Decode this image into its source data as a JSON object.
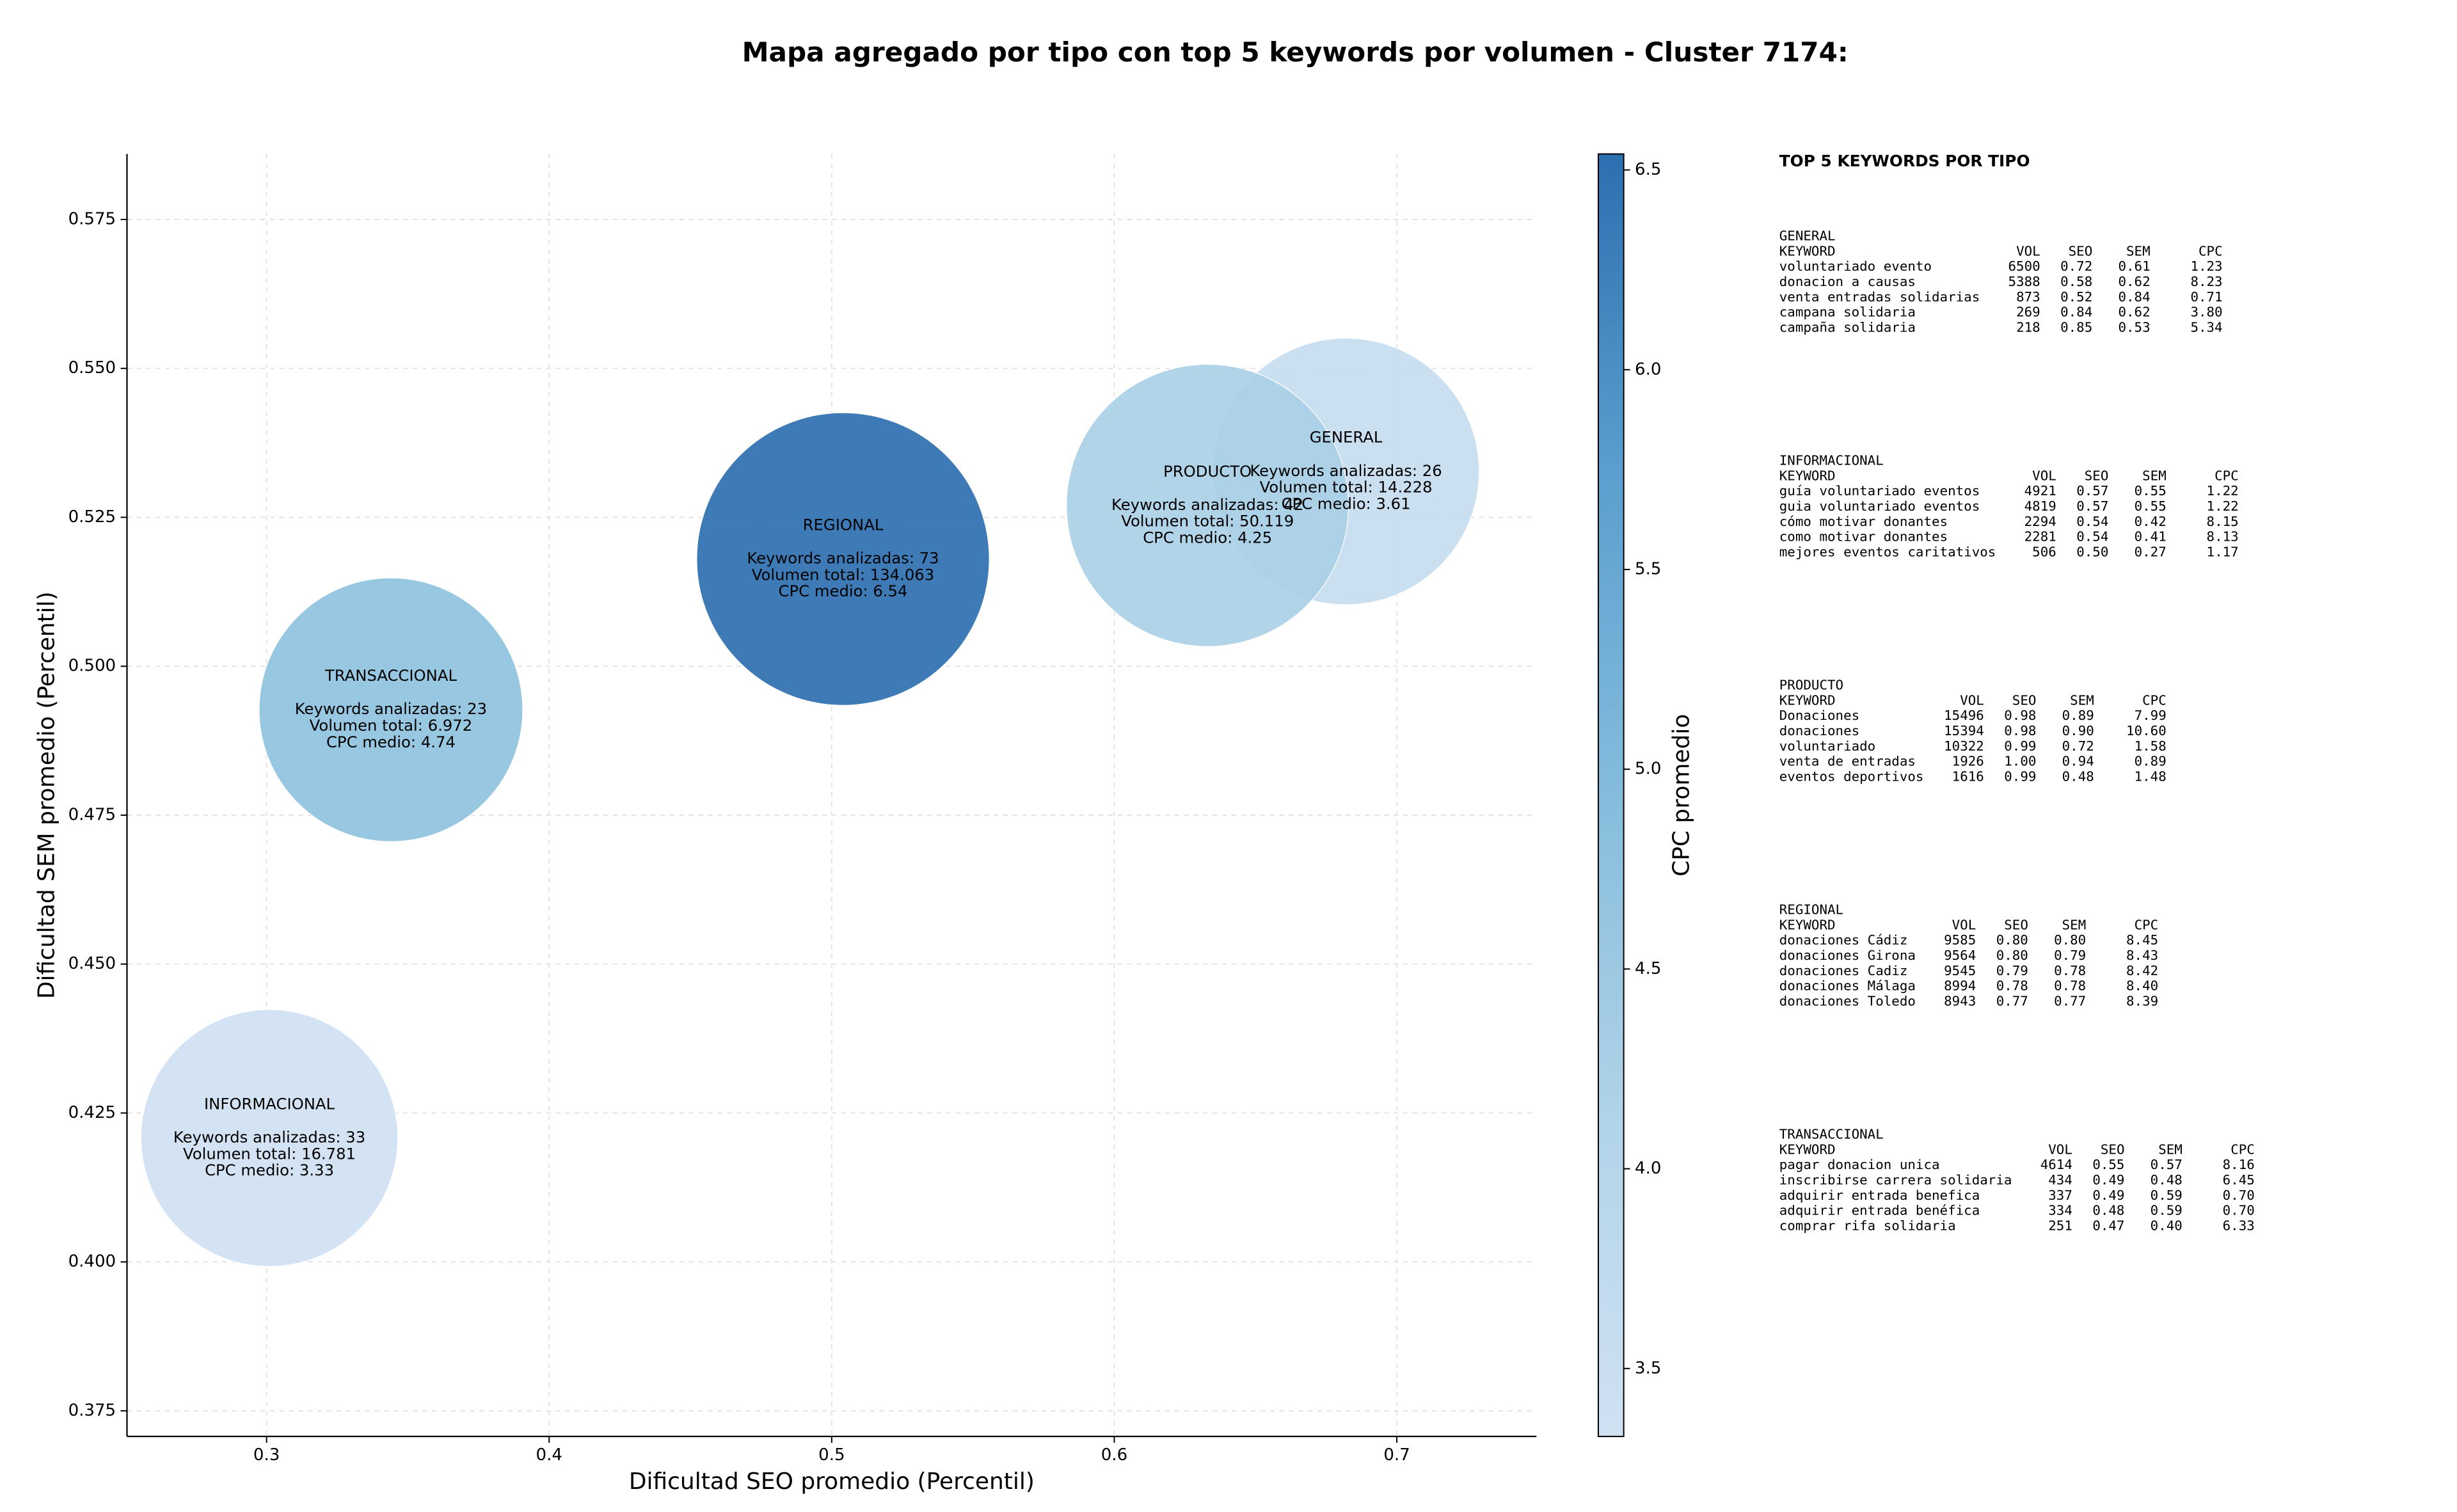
{
  "chart_data": {
    "type": "scatter",
    "title": "Mapa agregado por tipo con top 5 keywords por volumen - Cluster 7174:",
    "xlabel": "Dificultad SEO promedio (Percentil)",
    "ylabel": "Dificultad SEM promedio (Percentil)",
    "names": [
      "GENERAL",
      "INFORMACIONAL",
      "PRODUCTO",
      "REGIONAL",
      "TRANSACCIONAL"
    ],
    "x": [
      0.682,
      0.301,
      0.633,
      0.504,
      0.344
    ],
    "values": [
      0.5327,
      0.4208,
      0.527,
      0.518,
      0.4927
    ],
    "sizes": [
      7050,
      6550,
      7900,
      8500,
      6900
    ],
    "cpc": [
      3.61,
      3.33,
      4.25,
      6.54,
      4.74
    ],
    "annotations": [
      [
        "Keywords analizadas: 26",
        "Volumen total: 14.228",
        "CPC medio: 3.61"
      ],
      [
        "Keywords analizadas: 33",
        "Volumen total: 16.781",
        "CPC medio: 3.33"
      ],
      [
        "Keywords analizadas: 42",
        "Volumen total: 50.119",
        "CPC medio: 4.25"
      ],
      [
        "Keywords analizadas: 73",
        "Volumen total: 134.063",
        "CPC medio: 6.54"
      ],
      [
        "Keywords analizadas: 23",
        "Volumen total: 6.972",
        "CPC medio: 4.74"
      ]
    ],
    "xlim": [
      0.2506,
      0.7494
    ],
    "ylim": [
      0.3707,
      0.586
    ],
    "xticks": [
      0.3,
      0.4,
      0.5,
      0.6,
      0.7
    ],
    "yticks": [
      0.375,
      {
        "value": 0.4,
        "label": "0.400"
      },
      0.425,
      {
        "value": 0.45,
        "label": "0.450"
      },
      0.475,
      {
        "value": 0.5,
        "label": "0.500"
      },
      0.525,
      {
        "value": 0.55,
        "label": "0.550"
      },
      0.575
    ],
    "grid": true,
    "colormap": [
      "#d0e1f2",
      "#b0d3e8",
      "#85bcdc",
      "#5a9fcf",
      "#2c6fb0"
    ],
    "colorbar": {
      "label": "CPC promedio",
      "lim": [
        3.33,
        6.54
      ],
      "ticks": [
        3.5,
        {
          "value": 4.0,
          "label": "4.0"
        },
        4.5,
        {
          "value": 5.0,
          "label": "5.0"
        },
        5.5,
        {
          "value": 6.0,
          "label": "6.0"
        },
        6.5
      ]
    }
  },
  "keywords_panel": {
    "title": "TOP 5 KEYWORDS POR TIPO",
    "header": [
      "KEYWORD",
      "VOL",
      "SEO",
      "SEM",
      "CPC"
    ],
    "tables": [
      {
        "type": "GENERAL",
        "rows": [
          [
            "voluntariado evento",
            "6500",
            "0.72",
            "0.61",
            "1.23"
          ],
          [
            "donacion a causas",
            "5388",
            "0.58",
            "0.62",
            "8.23"
          ],
          [
            "venta entradas solidarias",
            "873",
            "0.52",
            "0.84",
            "0.71"
          ],
          [
            "campana solidaria",
            "269",
            "0.84",
            "0.62",
            "3.80"
          ],
          [
            "campaña solidaria",
            "218",
            "0.85",
            "0.53",
            "5.34"
          ]
        ]
      },
      {
        "type": "INFORMACIONAL",
        "rows": [
          [
            "guía voluntariado eventos",
            "4921",
            "0.57",
            "0.55",
            "1.22"
          ],
          [
            "guia voluntariado eventos",
            "4819",
            "0.57",
            "0.55",
            "1.22"
          ],
          [
            "cómo motivar donantes",
            "2294",
            "0.54",
            "0.42",
            "8.15"
          ],
          [
            "como motivar donantes",
            "2281",
            "0.54",
            "0.41",
            "8.13"
          ],
          [
            "mejores eventos caritativos",
            "506",
            "0.50",
            "0.27",
            "1.17"
          ]
        ]
      },
      {
        "type": "PRODUCTO",
        "rows": [
          [
            "Donaciones",
            "15496",
            "0.98",
            "0.89",
            "7.99"
          ],
          [
            "donaciones",
            "15394",
            "0.98",
            "0.90",
            "10.60"
          ],
          [
            "voluntariado",
            "10322",
            "0.99",
            "0.72",
            "1.58"
          ],
          [
            "venta de entradas",
            "1926",
            "1.00",
            "0.94",
            "0.89"
          ],
          [
            "eventos deportivos",
            "1616",
            "0.99",
            "0.48",
            "1.48"
          ]
        ]
      },
      {
        "type": "REGIONAL",
        "rows": [
          [
            "donaciones Cádiz",
            "9585",
            "0.80",
            "0.80",
            "8.45"
          ],
          [
            "donaciones Girona",
            "9564",
            "0.80",
            "0.79",
            "8.43"
          ],
          [
            "donaciones Cadiz",
            "9545",
            "0.79",
            "0.78",
            "8.42"
          ],
          [
            "donaciones Málaga",
            "8994",
            "0.78",
            "0.78",
            "8.40"
          ],
          [
            "donaciones Toledo",
            "8943",
            "0.77",
            "0.77",
            "8.39"
          ]
        ]
      },
      {
        "type": "TRANSACCIONAL",
        "rows": [
          [
            "pagar donacion unica",
            "4614",
            "0.55",
            "0.57",
            "8.16"
          ],
          [
            "inscribirse carrera solidaria",
            "434",
            "0.49",
            "0.48",
            "6.45"
          ],
          [
            "adquirir entrada benefica",
            "337",
            "0.49",
            "0.59",
            "0.70"
          ],
          [
            "adquirir entrada benéfica",
            "334",
            "0.48",
            "0.59",
            "0.70"
          ],
          [
            "comprar rifa solidaria",
            "251",
            "0.47",
            "0.40",
            "6.33"
          ]
        ]
      }
    ]
  }
}
